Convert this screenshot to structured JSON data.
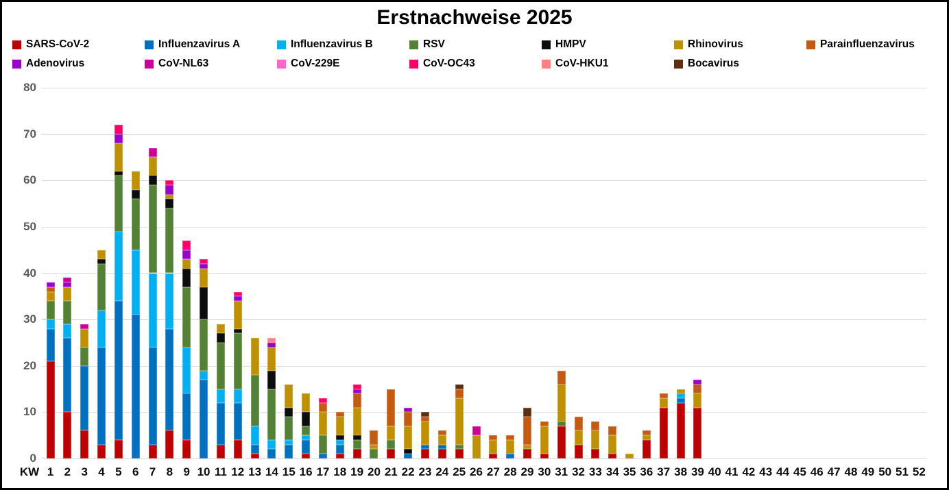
{
  "title": "Erstnachweise 2025",
  "axis": {
    "x_prefix_label": "KW",
    "y_ticks": [
      0,
      10,
      20,
      30,
      40,
      50,
      60,
      70,
      80
    ]
  },
  "colors": {
    "grid": "#d9d9d9",
    "y_label_text": "#595959",
    "x_label_text": "#0d0d0d",
    "border": "#000000",
    "background": "#ffffff"
  },
  "chart_data": {
    "type": "bar",
    "stacked": true,
    "title": "Erstnachweise 2025",
    "xlabel": "KW",
    "ylabel": "",
    "ylim": [
      0,
      80
    ],
    "ytick_step": 10,
    "grid": true,
    "legend_position": "top",
    "categories": [
      1,
      2,
      3,
      4,
      5,
      6,
      7,
      8,
      9,
      10,
      11,
      12,
      13,
      14,
      15,
      16,
      17,
      18,
      19,
      20,
      21,
      22,
      23,
      24,
      25,
      26,
      27,
      28,
      29,
      30,
      31,
      32,
      33,
      34,
      35,
      36,
      37,
      38,
      39,
      40,
      41,
      42,
      43,
      44,
      45,
      46,
      47,
      48,
      49,
      50,
      51,
      52
    ],
    "series": [
      {
        "name": "SARS-CoV-2",
        "color": "#c00000",
        "values": [
          21,
          10,
          6,
          3,
          4,
          0,
          3,
          6,
          4,
          0,
          3,
          4,
          1,
          0,
          0,
          1,
          0,
          1,
          2,
          0,
          2,
          0,
          2,
          2,
          2,
          0,
          1,
          0,
          2,
          1,
          7,
          3,
          2,
          1,
          0,
          4,
          11,
          12,
          11,
          0,
          0,
          0,
          0,
          0,
          0,
          0,
          0,
          0,
          0,
          0,
          0,
          0
        ]
      },
      {
        "name": "Influenzavirus A",
        "color": "#0070c0",
        "values": [
          7,
          16,
          14,
          21,
          30,
          31,
          21,
          22,
          10,
          17,
          9,
          8,
          2,
          2,
          3,
          3,
          1,
          2,
          0,
          0,
          0,
          1,
          1,
          1,
          0,
          0,
          0,
          1,
          0,
          0,
          0,
          0,
          0,
          0,
          0,
          0,
          0,
          1,
          0,
          0,
          0,
          0,
          0,
          0,
          0,
          0,
          0,
          0,
          0,
          0,
          0,
          0
        ]
      },
      {
        "name": "Influenzavirus B",
        "color": "#00b0f0",
        "values": [
          2,
          3,
          0,
          8,
          15,
          14,
          16,
          12,
          10,
          2,
          3,
          3,
          4,
          2,
          1,
          1,
          0,
          1,
          0,
          0,
          0,
          0,
          0,
          0,
          0,
          0,
          0,
          0,
          0,
          0,
          0,
          0,
          0,
          0,
          0,
          0,
          0,
          1,
          0,
          0,
          0,
          0,
          0,
          0,
          0,
          0,
          0,
          0,
          0,
          0,
          0,
          0
        ]
      },
      {
        "name": "RSV",
        "color": "#548235",
        "values": [
          4,
          5,
          4,
          10,
          12,
          11,
          19,
          14,
          13,
          11,
          10,
          12,
          11,
          11,
          5,
          2,
          4,
          0,
          2,
          2,
          2,
          0,
          0,
          0,
          1,
          0,
          0,
          0,
          0,
          0,
          1,
          0,
          0,
          0,
          0,
          0,
          0,
          0,
          0,
          0,
          0,
          0,
          0,
          0,
          0,
          0,
          0,
          0,
          0,
          0,
          0,
          0
        ]
      },
      {
        "name": "HMPV",
        "color": "#0d0d0d",
        "values": [
          0,
          0,
          0,
          1,
          1,
          2,
          2,
          2,
          4,
          7,
          2,
          1,
          0,
          4,
          2,
          3,
          0,
          1,
          1,
          0,
          0,
          1,
          0,
          0,
          0,
          0,
          0,
          0,
          0,
          0,
          0,
          0,
          0,
          0,
          0,
          0,
          0,
          0,
          0,
          0,
          0,
          0,
          0,
          0,
          0,
          0,
          0,
          0,
          0,
          0,
          0,
          0
        ]
      },
      {
        "name": "Rhinovirus",
        "color": "#bf9000",
        "values": [
          2,
          3,
          4,
          2,
          6,
          4,
          4,
          1,
          2,
          4,
          2,
          6,
          8,
          5,
          5,
          4,
          5,
          4,
          6,
          1,
          3,
          5,
          5,
          2,
          10,
          5,
          3,
          3,
          1,
          6,
          8,
          3,
          4,
          4,
          1,
          1,
          2,
          1,
          3,
          0,
          0,
          0,
          0,
          0,
          0,
          0,
          0,
          0,
          0,
          0,
          0,
          0
        ]
      },
      {
        "name": "Parainfluenzavirus",
        "color": "#c55a11",
        "values": [
          1,
          0,
          0,
          0,
          0,
          0,
          0,
          0,
          0,
          0,
          0,
          0,
          0,
          0,
          0,
          0,
          2,
          1,
          3,
          3,
          8,
          3,
          1,
          1,
          2,
          0,
          1,
          1,
          6,
          1,
          3,
          3,
          2,
          2,
          0,
          1,
          1,
          0,
          2,
          0,
          0,
          0,
          0,
          0,
          0,
          0,
          0,
          0,
          0,
          0,
          0,
          0
        ]
      },
      {
        "name": "Adenovirus",
        "color": "#9900cc",
        "values": [
          1,
          1,
          0,
          0,
          2,
          0,
          0,
          2,
          2,
          1,
          0,
          1,
          0,
          1,
          0,
          0,
          0,
          0,
          1,
          0,
          0,
          1,
          0,
          0,
          0,
          0,
          0,
          0,
          0,
          0,
          0,
          0,
          0,
          0,
          0,
          0,
          0,
          0,
          1,
          0,
          0,
          0,
          0,
          0,
          0,
          0,
          0,
          0,
          0,
          0,
          0,
          0
        ]
      },
      {
        "name": "CoV-NL63",
        "color": "#cc0099",
        "values": [
          0,
          1,
          1,
          0,
          0,
          0,
          2,
          0,
          0,
          0,
          0,
          0,
          0,
          0,
          0,
          0,
          0,
          0,
          0,
          0,
          0,
          0,
          0,
          0,
          0,
          2,
          0,
          0,
          0,
          0,
          0,
          0,
          0,
          0,
          0,
          0,
          0,
          0,
          0,
          0,
          0,
          0,
          0,
          0,
          0,
          0,
          0,
          0,
          0,
          0,
          0,
          0
        ]
      },
      {
        "name": "CoV-229E",
        "color": "#ff66cc",
        "values": [
          0,
          0,
          0,
          0,
          0,
          0,
          0,
          0,
          0,
          0,
          0,
          0,
          0,
          0,
          0,
          0,
          0,
          0,
          0,
          0,
          0,
          0,
          0,
          0,
          0,
          0,
          0,
          0,
          0,
          0,
          0,
          0,
          0,
          0,
          0,
          0,
          0,
          0,
          0,
          0,
          0,
          0,
          0,
          0,
          0,
          0,
          0,
          0,
          0,
          0,
          0,
          0
        ]
      },
      {
        "name": "CoV-OC43",
        "color": "#ff0066",
        "values": [
          0,
          0,
          0,
          0,
          2,
          0,
          0,
          1,
          2,
          1,
          0,
          1,
          0,
          0,
          0,
          0,
          1,
          0,
          1,
          0,
          0,
          0,
          0,
          0,
          0,
          0,
          0,
          0,
          0,
          0,
          0,
          0,
          0,
          0,
          0,
          0,
          0,
          0,
          0,
          0,
          0,
          0,
          0,
          0,
          0,
          0,
          0,
          0,
          0,
          0,
          0,
          0
        ]
      },
      {
        "name": "CoV-HKU1",
        "color": "#ff8080",
        "values": [
          0,
          0,
          0,
          0,
          0,
          0,
          0,
          0,
          0,
          0,
          0,
          0,
          0,
          1,
          0,
          0,
          0,
          0,
          0,
          0,
          0,
          0,
          0,
          0,
          0,
          0,
          0,
          0,
          0,
          0,
          0,
          0,
          0,
          0,
          0,
          0,
          0,
          0,
          0,
          0,
          0,
          0,
          0,
          0,
          0,
          0,
          0,
          0,
          0,
          0,
          0,
          0
        ]
      },
      {
        "name": "Bocavirus",
        "color": "#5e2f0d",
        "values": [
          0,
          0,
          0,
          0,
          0,
          0,
          0,
          0,
          0,
          0,
          0,
          0,
          0,
          0,
          0,
          0,
          0,
          0,
          0,
          0,
          0,
          0,
          1,
          0,
          1,
          0,
          0,
          0,
          2,
          0,
          0,
          0,
          0,
          0,
          0,
          0,
          0,
          0,
          0,
          0,
          0,
          0,
          0,
          0,
          0,
          0,
          0,
          0,
          0,
          0,
          0,
          0
        ]
      }
    ]
  }
}
